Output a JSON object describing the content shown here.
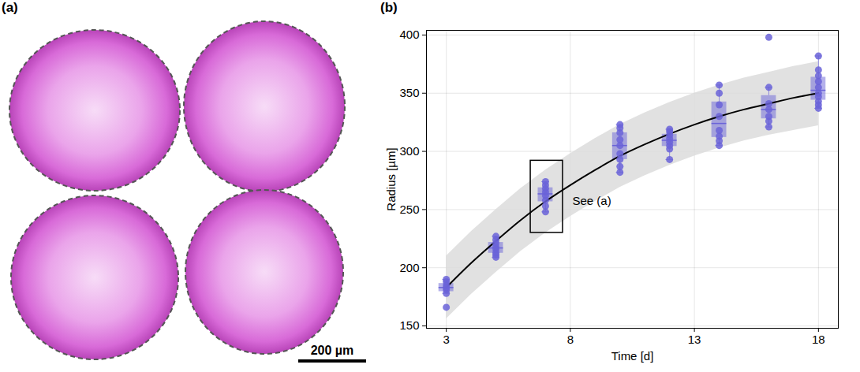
{
  "image_panel": {
    "label": "(a)",
    "image_count": 4,
    "scale_bar_label": "200 µm"
  },
  "chart_data": {
    "type": "scatter",
    "panel_label": "(b)",
    "x_label": "Time [d]",
    "y_label": "Radius [µm]",
    "xlim": [
      2.2,
      18.8
    ],
    "xticks": [
      3,
      8,
      13,
      18
    ],
    "ylim": [
      148,
      404
    ],
    "yticks": [
      150,
      200,
      250,
      300,
      350,
      400
    ],
    "grid": true,
    "color": "#6a63d8",
    "groups": [
      {
        "x": 3,
        "values": [
          166,
          178,
          181,
          183,
          185,
          188,
          190
        ]
      },
      {
        "x": 5,
        "values": [
          209,
          211,
          213,
          216,
          218,
          221,
          224,
          227
        ]
      },
      {
        "x": 7,
        "values": [
          248,
          253,
          258,
          262,
          265,
          268,
          271,
          274
        ]
      },
      {
        "x": 10,
        "values": [
          282,
          287,
          293,
          298,
          305,
          310,
          316,
          320,
          323
        ]
      },
      {
        "x": 12,
        "values": [
          293,
          302,
          305,
          308,
          311,
          314,
          317,
          319
        ]
      },
      {
        "x": 14,
        "values": [
          305,
          309,
          313,
          318,
          330,
          340,
          350,
          357
        ]
      },
      {
        "x": 16,
        "values": [
          321,
          326,
          330,
          336,
          341,
          355,
          398
        ]
      },
      {
        "x": 18,
        "values": [
          337,
          340,
          343,
          347,
          350,
          355,
          360,
          365,
          370,
          382
        ]
      }
    ],
    "fit": {
      "color": "#000000",
      "band_color": "#dcdcdc",
      "x": [
        3,
        4,
        5,
        6,
        7,
        8,
        9,
        10,
        11,
        12,
        13,
        14,
        15,
        16,
        17,
        18
      ],
      "values": [
        183,
        204,
        223,
        241,
        257,
        271,
        284,
        296,
        306,
        315,
        323,
        330,
        336,
        341,
        346,
        350
      ],
      "lower": [
        156,
        177,
        196,
        214,
        230,
        244,
        257,
        269,
        279,
        288,
        296,
        303,
        309,
        314,
        318,
        322
      ],
      "upper": [
        210,
        231,
        250,
        268,
        284,
        298,
        311,
        323,
        333,
        342,
        350,
        357,
        363,
        368,
        373,
        377
      ]
    },
    "annotation": {
      "text": "See (a)",
      "x": [
        6.4,
        7.7
      ],
      "y": [
        230,
        292
      ]
    }
  }
}
